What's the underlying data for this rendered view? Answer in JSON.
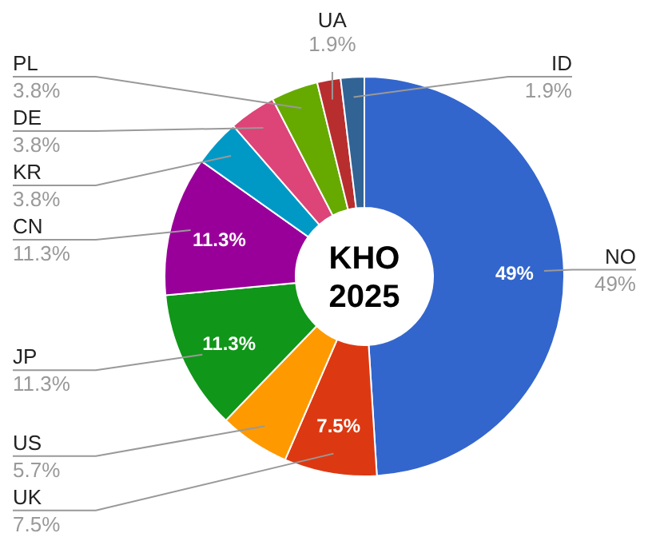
{
  "chart_data": {
    "type": "donut",
    "title": "KHO 2025",
    "categories": [
      "NO",
      "UK",
      "US",
      "JP",
      "CN",
      "KR",
      "DE",
      "PL",
      "UA",
      "ID"
    ],
    "values": [
      49,
      7.5,
      5.7,
      11.3,
      11.3,
      3.8,
      3.8,
      3.8,
      1.9,
      1.9
    ],
    "colors": [
      "#3366cc",
      "#dc3912",
      "#ff9900",
      "#109618",
      "#990099",
      "#0099c6",
      "#dd4477",
      "#66aa00",
      "#b82e2e",
      "#316395"
    ],
    "value_labels": [
      "49%",
      "7.5%",
      "5.7%",
      "11.3%",
      "11.3%",
      "3.8%",
      "3.8%",
      "3.8%",
      "1.9%",
      "1.9%"
    ]
  }
}
